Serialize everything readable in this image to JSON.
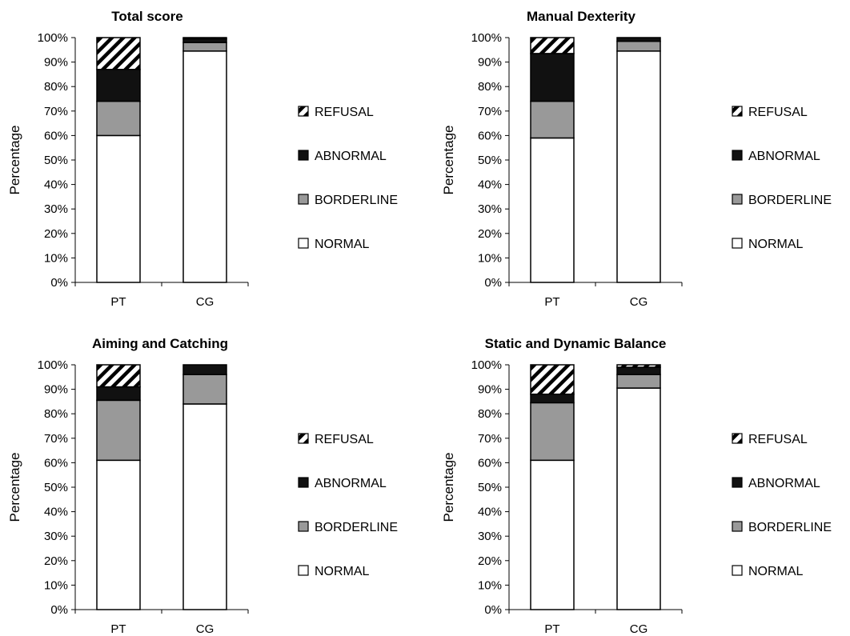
{
  "chart_data": [
    {
      "type": "bar",
      "stacked": true,
      "title": "Total score",
      "ylabel": "Percentage",
      "ylim": [
        0,
        100
      ],
      "yticks": [
        "0%",
        "10%",
        "20%",
        "30%",
        "40%",
        "50%",
        "60%",
        "70%",
        "80%",
        "90%",
        "100%"
      ],
      "categories": [
        "PT",
        "CG"
      ],
      "series": [
        {
          "name": "NORMAL",
          "values": [
            60,
            94.5
          ]
        },
        {
          "name": "BORDERLINE",
          "values": [
            14,
            3.5
          ]
        },
        {
          "name": "ABNORMAL",
          "values": [
            13,
            1.5
          ]
        },
        {
          "name": "REFUSAL",
          "values": [
            13,
            0.5
          ]
        }
      ],
      "legend": {
        "position": "right",
        "entries": [
          "REFUSAL",
          "ABNORMAL",
          "BORDERLINE",
          "NORMAL"
        ]
      }
    },
    {
      "type": "bar",
      "stacked": true,
      "title": "Manual Dexterity",
      "ylabel": "Percentage",
      "ylim": [
        0,
        100
      ],
      "yticks": [
        "0%",
        "10%",
        "20%",
        "30%",
        "40%",
        "50%",
        "60%",
        "70%",
        "80%",
        "90%",
        "100%"
      ],
      "categories": [
        "PT",
        "CG"
      ],
      "series": [
        {
          "name": "NORMAL",
          "values": [
            59,
            94.5
          ]
        },
        {
          "name": "BORDERLINE",
          "values": [
            15,
            4
          ]
        },
        {
          "name": "ABNORMAL",
          "values": [
            19.5,
            1.5
          ]
        },
        {
          "name": "REFUSAL",
          "values": [
            6.5,
            0
          ]
        }
      ],
      "legend": {
        "position": "right",
        "entries": [
          "REFUSAL",
          "ABNORMAL",
          "BORDERLINE",
          "NORMAL"
        ]
      }
    },
    {
      "type": "bar",
      "stacked": true,
      "title": "Aiming and Catching",
      "ylabel": "Percentage",
      "ylim": [
        0,
        100
      ],
      "yticks": [
        "0%",
        "10%",
        "20%",
        "30%",
        "40%",
        "50%",
        "60%",
        "70%",
        "80%",
        "90%",
        "100%"
      ],
      "categories": [
        "PT",
        "CG"
      ],
      "series": [
        {
          "name": "NORMAL",
          "values": [
            61,
            84
          ]
        },
        {
          "name": "BORDERLINE",
          "values": [
            24.5,
            12
          ]
        },
        {
          "name": "ABNORMAL",
          "values": [
            5.5,
            4
          ]
        },
        {
          "name": "REFUSAL",
          "values": [
            9,
            0
          ]
        }
      ],
      "legend": {
        "position": "right",
        "entries": [
          "REFUSAL",
          "ABNORMAL",
          "BORDERLINE",
          "NORMAL"
        ]
      }
    },
    {
      "type": "bar",
      "stacked": true,
      "title": "Static and Dynamic Balance",
      "ylabel": "Percentage",
      "ylim": [
        0,
        100
      ],
      "yticks": [
        "0%",
        "10%",
        "20%",
        "30%",
        "40%",
        "50%",
        "60%",
        "70%",
        "80%",
        "90%",
        "100%"
      ],
      "categories": [
        "PT",
        "CG"
      ],
      "series": [
        {
          "name": "NORMAL",
          "values": [
            61,
            90.5
          ]
        },
        {
          "name": "BORDERLINE",
          "values": [
            23.5,
            5.5
          ]
        },
        {
          "name": "ABNORMAL",
          "values": [
            3.5,
            3
          ]
        },
        {
          "name": "REFUSAL",
          "values": [
            12,
            1
          ]
        }
      ],
      "legend": {
        "position": "right",
        "entries": [
          "REFUSAL",
          "ABNORMAL",
          "BORDERLINE",
          "NORMAL"
        ]
      }
    }
  ]
}
